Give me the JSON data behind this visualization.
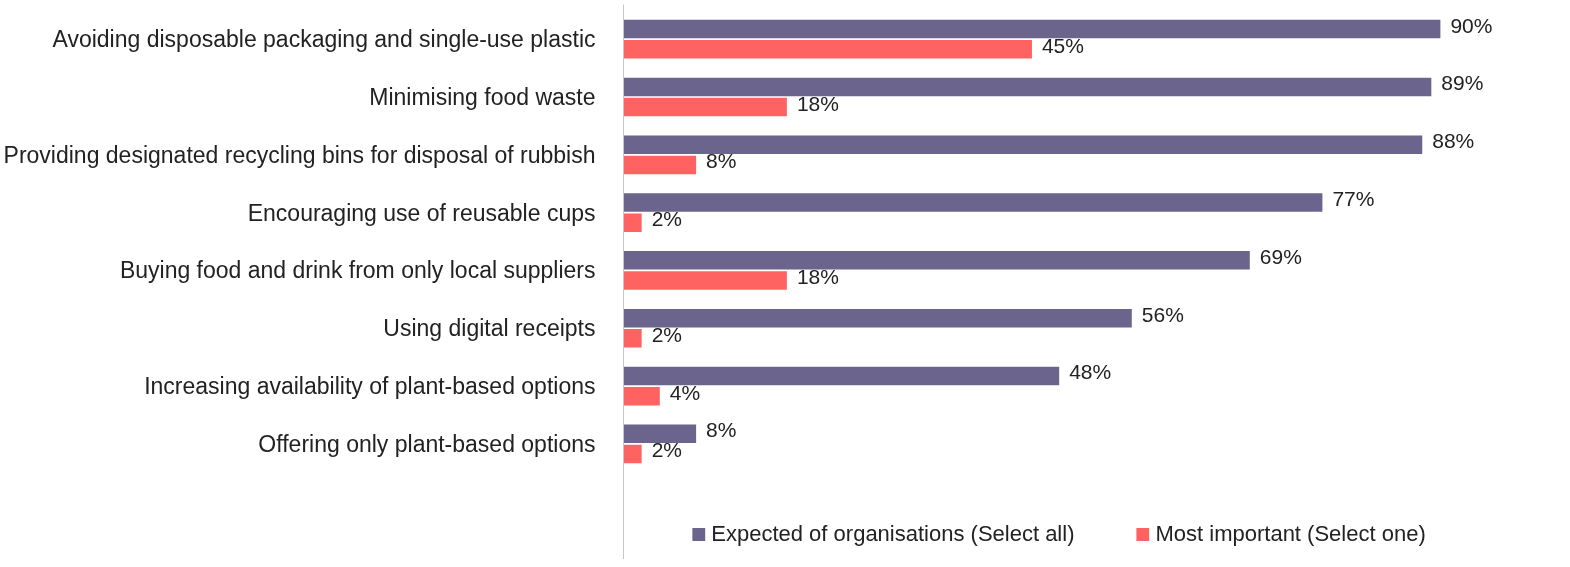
{
  "chart_data": {
    "type": "bar",
    "orientation": "horizontal",
    "categories": [
      "Avoiding disposable packaging and single-use plastic",
      "Minimising food waste",
      "Providing designated recycling bins for disposal of rubbish",
      "Encouraging use of reusable cups",
      "Buying food and drink from only local suppliers",
      "Using digital receipts",
      "Increasing availability of plant-based options",
      "Offering only plant-based options"
    ],
    "series": [
      {
        "name": "Expected of organisations (Select all)",
        "color": "#6b648c",
        "values": [
          90,
          89,
          88,
          77,
          69,
          56,
          48,
          8
        ],
        "value_labels": [
          "90%",
          "89%",
          "88%",
          "77%",
          "69%",
          "56%",
          "48%",
          "8%"
        ]
      },
      {
        "name": "Most important (Select one)",
        "color": "#ff6361",
        "values": [
          45,
          18,
          8,
          2,
          18,
          2,
          4,
          2
        ],
        "value_labels": [
          "45%",
          "18%",
          "8%",
          "2%",
          "18%",
          "2%",
          "4%",
          "2%"
        ]
      }
    ],
    "tick_labels": "y",
    "grid": false,
    "legend": "bottom"
  }
}
